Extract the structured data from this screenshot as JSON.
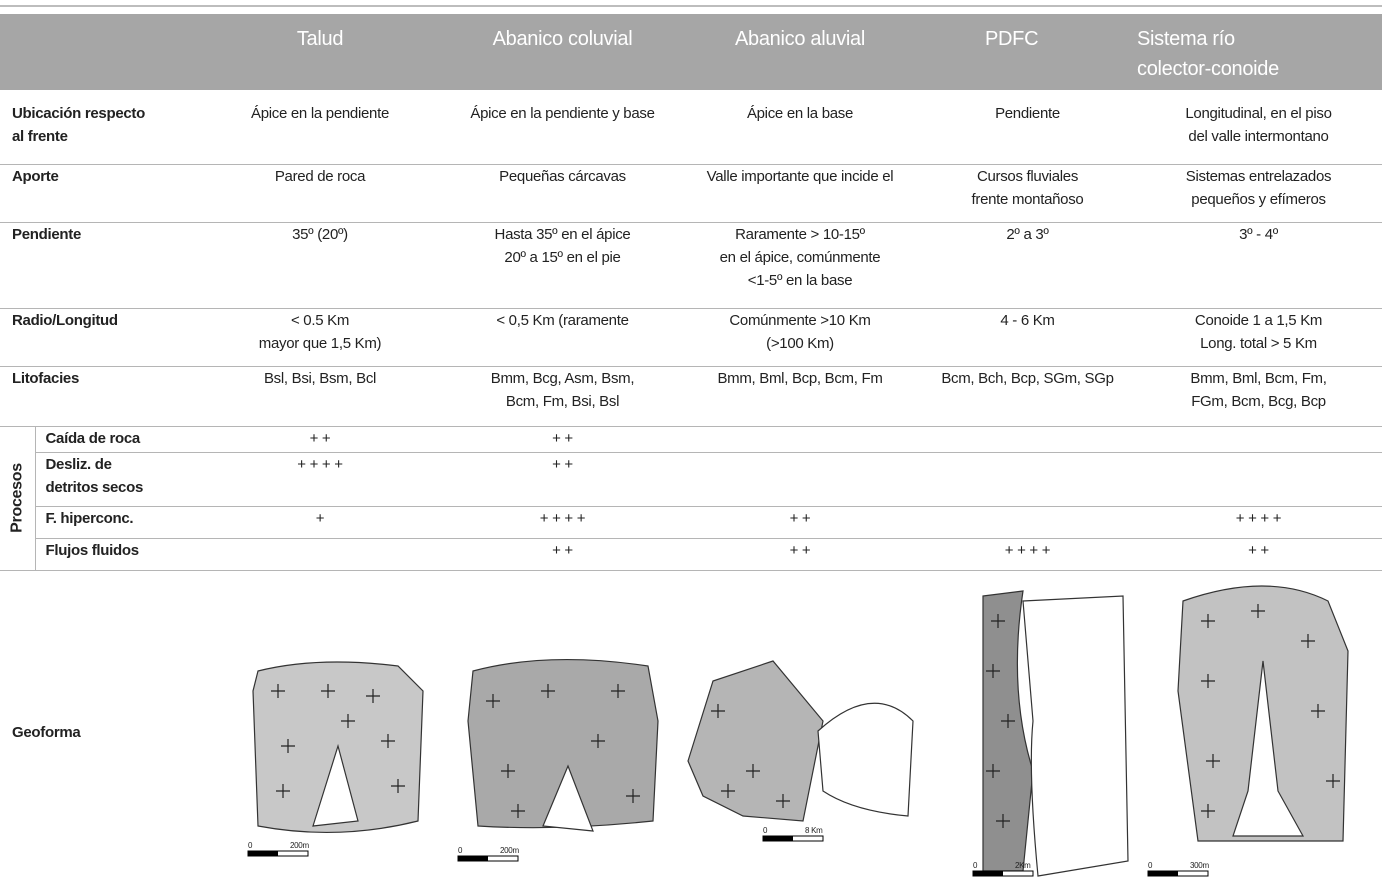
{
  "header": {
    "columns": [
      "Talud",
      "Abanico coluvial",
      "Abanico aluvial",
      "PDFC",
      "Sistema río\ncolector-conoide"
    ]
  },
  "rows": [
    {
      "label": "Ubicación respecto\nal frente",
      "cells": [
        "Ápice en la pendiente",
        "Ápice en la pendiente y base",
        "Ápice en la base",
        "Pendiente",
        "Longitudinal, en el piso\ndel valle intermontano"
      ]
    },
    {
      "label": "Aporte",
      "cells": [
        "Pared de roca",
        "Pequeñas cárcavas",
        "Valle importante que incide el",
        "Cursos fluviales\nfrente montañoso",
        "Sistemas entrelazados\npequeños y efímeros"
      ]
    },
    {
      "label": "Pendiente",
      "cells": [
        "35º (20º)",
        "Hasta 35º en el ápice\n20º a 15º en el pie",
        "Raramente > 10-15º\nen el ápice, comúnmente\n<1-5º en la base",
        "2º a 3º",
        "3º - 4º"
      ]
    },
    {
      "label": "Radio/Longitud",
      "cells": [
        "< 0.5 Km\nmayor que 1,5 Km)",
        "< 0,5 Km (raramente",
        "Comúnmente >10 Km\n(>100 Km)",
        "4 - 6 Km",
        "Conoide 1 a 1,5 Km\nLong. total > 5 Km"
      ]
    },
    {
      "label": "Litofacies",
      "cells": [
        "Bsl, Bsi, Bsm, Bcl",
        "Bmm, Bcg, Asm, Bsm,\nBcm, Fm, Bsi, Bsl",
        "Bmm, Bml, Bcp, Bcm, Fm",
        "Bcm, Bch, Bcp, SGm, SGp",
        "Bmm, Bml, Bcm, Fm,\nFGm, Bcm, Bcg, Bcp"
      ]
    }
  ],
  "procesos": {
    "label": "Procesos",
    "rows": [
      {
        "label": "Caída de roca",
        "cells": [
          "+ +",
          "+ +",
          "",
          "",
          ""
        ]
      },
      {
        "label": "Desliz. de\ndetritos secos",
        "cells": [
          "+ + + +",
          "+ +",
          "",
          "",
          ""
        ]
      },
      {
        "label": "F. hiperconc.",
        "cells": [
          "+",
          "+ + + +",
          "+ +",
          "",
          "+ + + +"
        ]
      },
      {
        "label": "Flujos fluidos",
        "cells": [
          "",
          "+ +",
          "+ +",
          "+ + + +",
          "+ +"
        ]
      }
    ]
  },
  "geoforma": {
    "label": "Geoforma",
    "scales": [
      [
        "0",
        "200m"
      ],
      [
        "0",
        "200m"
      ],
      [
        "0",
        "8 Km"
      ],
      [
        "0",
        "2Km"
      ],
      [
        "0",
        "300m"
      ]
    ]
  }
}
